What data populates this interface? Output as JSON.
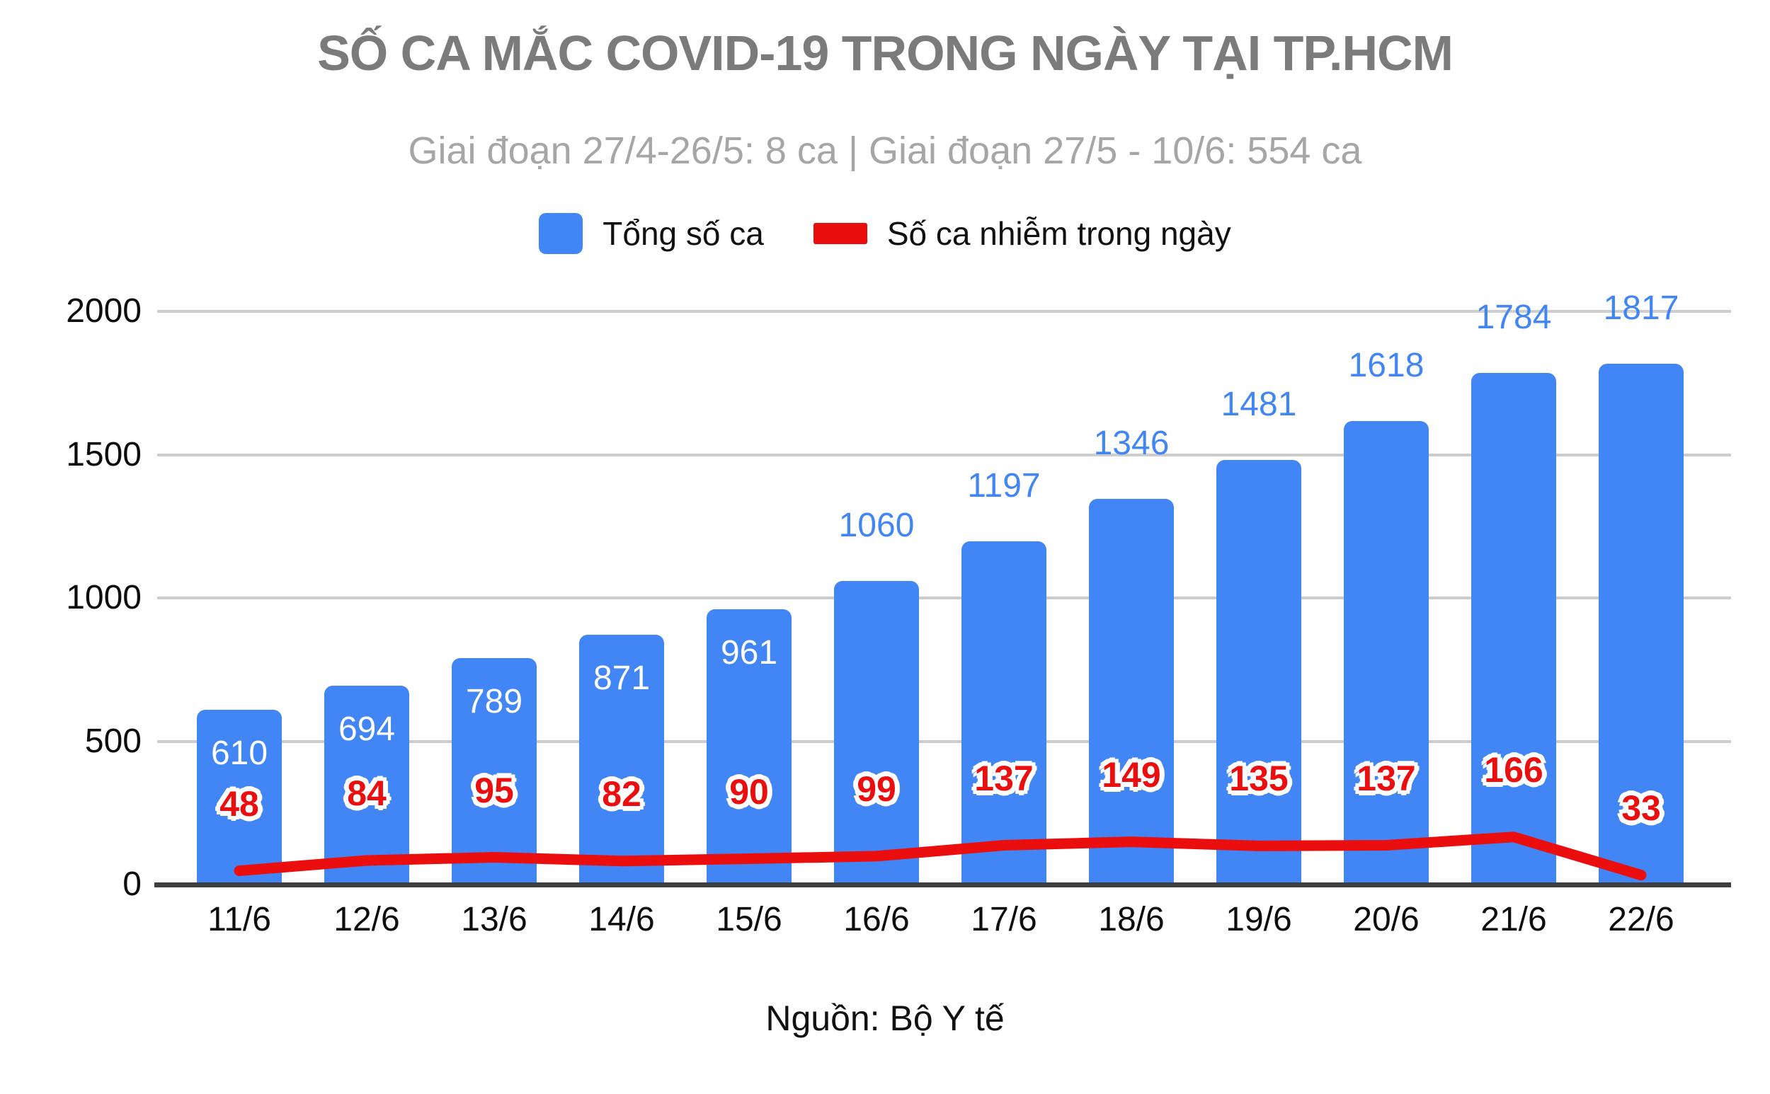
{
  "chart_data": {
    "type": "bar",
    "title": "SỐ CA MẮC COVID-19 TRONG NGÀY TẠI TP.HCM",
    "subtitle": "Giai đoạn 27/4-26/5: 8 ca  | Giai đoạn 27/5 - 10/6: 554 ca",
    "source": "Nguồn: Bộ Y tế",
    "categories": [
      "11/6",
      "12/6",
      "13/6",
      "14/6",
      "15/6",
      "16/6",
      "17/6",
      "18/6",
      "19/6",
      "20/6",
      "21/6",
      "22/6"
    ],
    "series": [
      {
        "name": "Tổng số ca",
        "type": "bar",
        "color": "#4286f5",
        "values": [
          610,
          694,
          789,
          871,
          961,
          1060,
          1197,
          1346,
          1481,
          1618,
          1784,
          1817
        ]
      },
      {
        "name": "Số ca nhiễm trong ngày",
        "type": "line",
        "color": "#eb0e0e",
        "values": [
          48,
          84,
          95,
          82,
          90,
          99,
          137,
          149,
          135,
          137,
          166,
          33
        ]
      }
    ],
    "xlabel": "",
    "ylabel": "",
    "yticks": [
      0,
      500,
      1000,
      1500,
      2000
    ],
    "ylim": [
      0,
      2000
    ],
    "grid": true,
    "legend_position": "top",
    "colors": {
      "bar_fill": "#4286f5",
      "bar_label_above": "#4286f5",
      "bar_label_inside": "#ffffff",
      "line_stroke": "#eb0e0e",
      "line_label": "#eb0e0e",
      "gridline": "#cdcdcd",
      "axis_line": "#3f3f3f",
      "title": "#7b7b7b",
      "subtitle": "#a6a6a6",
      "tick_text": "#0d0d0d"
    }
  }
}
